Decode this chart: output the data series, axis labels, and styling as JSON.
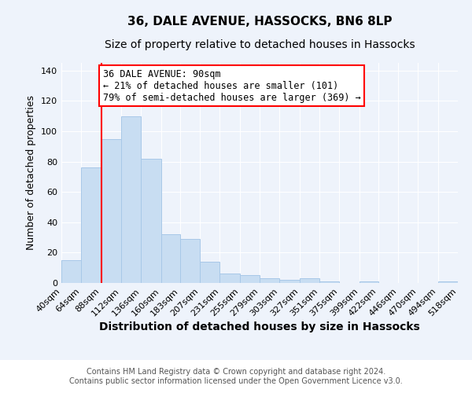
{
  "title": "36, DALE AVENUE, HASSOCKS, BN6 8LP",
  "subtitle": "Size of property relative to detached houses in Hassocks",
  "xlabel": "Distribution of detached houses by size in Hassocks",
  "ylabel": "Number of detached properties",
  "bar_color": "#c8ddf2",
  "bar_edge_color": "#a8c8e8",
  "vline_x": 88,
  "vline_color": "red",
  "annotation_text": "36 DALE AVENUE: 90sqm\n← 21% of detached houses are smaller (101)\n79% of semi-detached houses are larger (369) →",
  "annotation_box_color": "white",
  "annotation_box_edge": "red",
  "bin_edges": [
    40,
    64,
    88,
    112,
    136,
    160,
    183,
    207,
    231,
    255,
    279,
    303,
    327,
    351,
    375,
    399,
    422,
    446,
    470,
    494,
    518
  ],
  "bar_heights": [
    15,
    76,
    95,
    110,
    82,
    32,
    29,
    14,
    6,
    5,
    3,
    2,
    3,
    1,
    0,
    1,
    0,
    0,
    0,
    1
  ],
  "ylim": [
    0,
    145
  ],
  "yticks": [
    0,
    20,
    40,
    60,
    80,
    100,
    120,
    140
  ],
  "xtick_labels": [
    "40sqm",
    "64sqm",
    "88sqm",
    "112sqm",
    "136sqm",
    "160sqm",
    "183sqm",
    "207sqm",
    "231sqm",
    "255sqm",
    "279sqm",
    "303sqm",
    "327sqm",
    "351sqm",
    "375sqm",
    "399sqm",
    "422sqm",
    "446sqm",
    "470sqm",
    "494sqm",
    "518sqm"
  ],
  "footer_text": "Contains HM Land Registry data © Crown copyright and database right 2024.\nContains public sector information licensed under the Open Government Licence v3.0.",
  "title_fontsize": 11,
  "subtitle_fontsize": 10,
  "xlabel_fontsize": 10,
  "ylabel_fontsize": 9,
  "tick_fontsize": 8,
  "annotation_fontsize": 8.5,
  "footer_fontsize": 7,
  "background_color": "#eef3fb",
  "footer_bg_color": "#ffffff",
  "grid_color": "#ffffff"
}
